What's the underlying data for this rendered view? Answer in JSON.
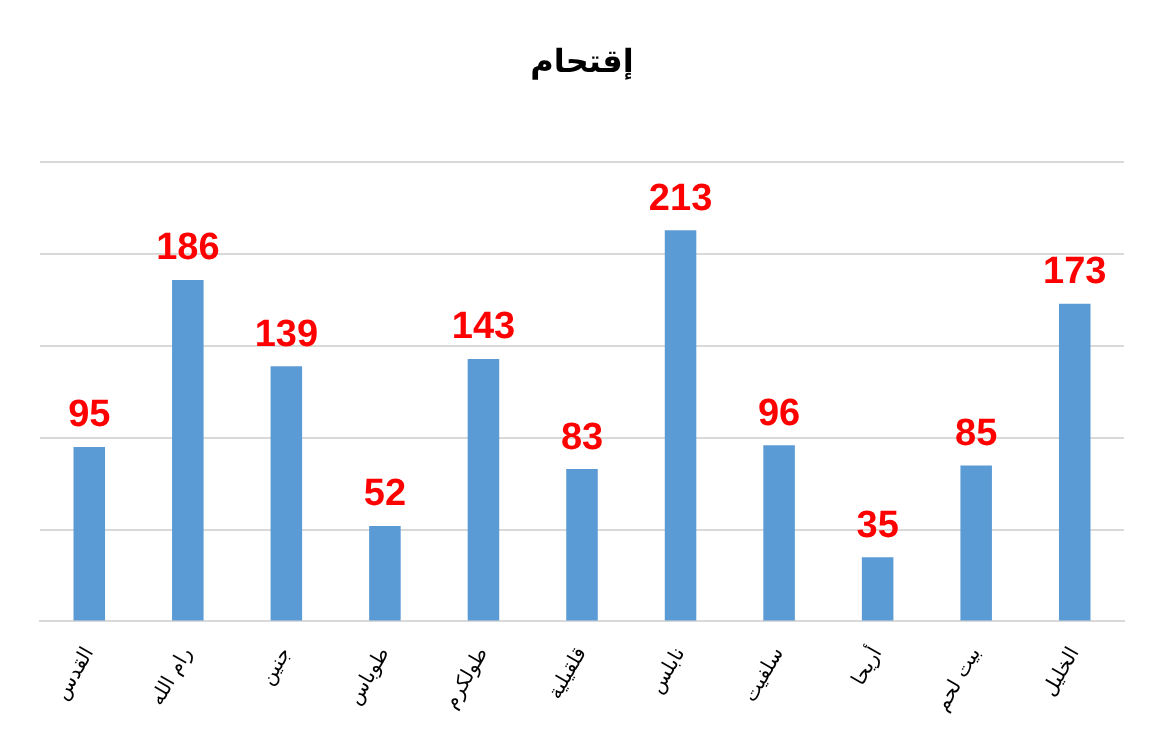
{
  "chart_data": {
    "type": "bar",
    "title": "إقتحام",
    "categories": [
      "القدس",
      "رام الله",
      "جنين",
      "طوباس",
      "طولكرم",
      "قلقيلية",
      "نابلس",
      "سلفيت",
      "أريحا",
      "بيت لحم",
      "الخليل"
    ],
    "values": [
      95,
      186,
      139,
      52,
      143,
      83,
      213,
      96,
      35,
      85,
      173
    ],
    "color": "#5b9bd5",
    "ylim": [
      0,
      250
    ],
    "yticks": [
      {
        "value": 0,
        "label": null
      },
      {
        "value": 50,
        "label": null
      },
      {
        "value": 100,
        "label": null
      },
      {
        "value": 150,
        "label": null
      },
      {
        "value": 200,
        "label": null
      },
      {
        "value": 250,
        "label": null
      }
    ],
    "grid": "y",
    "tick_labels": "x",
    "data_labels": true
  }
}
